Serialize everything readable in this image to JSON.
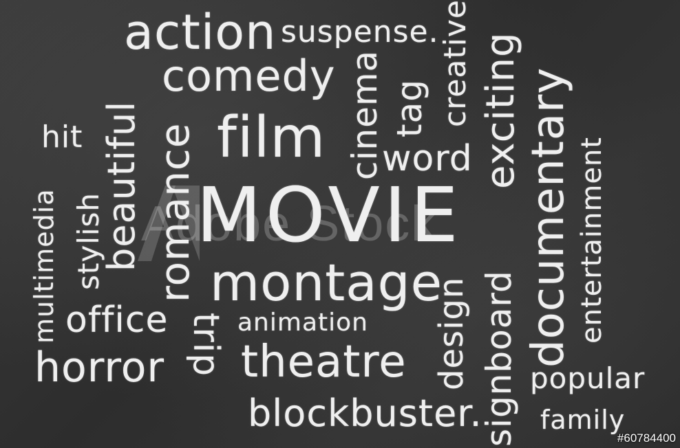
{
  "words": {
    "action": "action",
    "suspense": "suspense.",
    "comedy": "comedy",
    "film": "film",
    "movie": "MOVIE",
    "montage": "montage",
    "animation": "animation",
    "theatre": "theatre",
    "blockbuster": "blockbuster.",
    "office": "office",
    "horror": "horror",
    "hit": "hit",
    "word": "word",
    "popular": "popular",
    "family": "family",
    "cinema": "cinema",
    "tag": "tag",
    "creative": "creative",
    "exciting": "exciting",
    "documentary": "documentary",
    "entertainment": "entertainment",
    "beautiful": "beautiful",
    "romance": "romance",
    "stylish": "stylish",
    "multimedia": "multimedia",
    "trip": "trip",
    "design": "design",
    "signboard": "signboard"
  },
  "watermark": "Adobe Stock",
  "stock_id": "#60784400",
  "colors": {
    "board": "#2b2b2b",
    "chalk": "#efefef"
  }
}
